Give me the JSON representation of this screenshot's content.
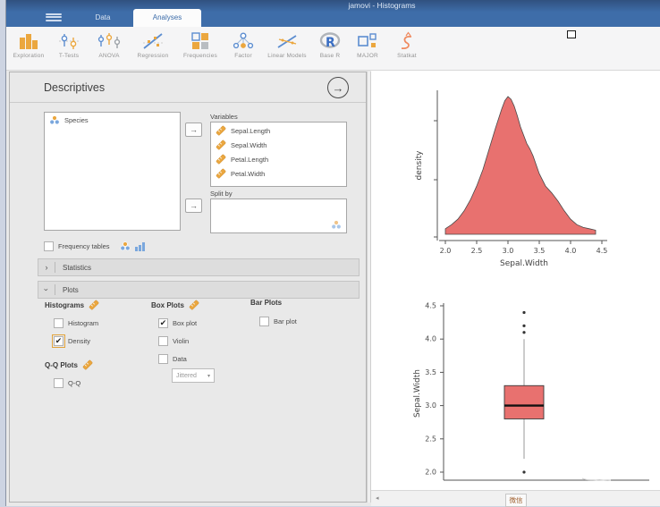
{
  "window": {
    "title": "jamovi - Histograms"
  },
  "menubar": {
    "tabs": [
      {
        "label": "Data"
      },
      {
        "label": "Analyses",
        "active": true
      }
    ]
  },
  "toolbar": {
    "items": [
      "Exploration",
      "T-Tests",
      "ANOVA",
      "Regression",
      "Frequencies",
      "Factor",
      "Linear Models",
      "Base R",
      "MAJOR",
      "Statkat"
    ]
  },
  "icons": {
    "move_right": "→",
    "run_arrow": "→",
    "chevron": "›",
    "dropdown_caret": "▾",
    "check": "✔"
  },
  "options_panel": {
    "title": "Descriptives",
    "available_variables": [
      "Species"
    ],
    "variables_label": "Variables",
    "variables": [
      "Sepal.Length",
      "Sepal.Width",
      "Petal.Length",
      "Petal.Width"
    ],
    "split_by_label": "Split by",
    "frequency_tables_label": "Frequency tables",
    "sections": [
      {
        "label": "Statistics",
        "collapsed": true
      },
      {
        "label": "Plots",
        "collapsed": false
      }
    ],
    "plots": {
      "histograms_title": "Histograms",
      "histogram_label": "Histogram",
      "density_label": "Density",
      "density_checked": true,
      "qq_title": "Q-Q Plots",
      "qq_label": "Q-Q",
      "box_title": "Box Plots",
      "box_label": "Box plot",
      "box_checked": true,
      "violin_label": "Violin",
      "data_label": "Data",
      "data_dropdown_value": "Jittered",
      "bar_title": "Bar Plots",
      "bar_label": "Bar plot"
    }
  },
  "results": {
    "bottom_arrow": "◂",
    "overlay_window_label": "微信"
  },
  "colors": {
    "titlebar": "#3e6da9",
    "plot_fill": "#e8716f",
    "icon_orange": "#eba73f",
    "icon_blue": "#5c8dd0"
  },
  "chart_data": [
    {
      "type": "area",
      "xlabel": "Sepal.Width",
      "ylabel": "density",
      "xlim": [
        2.0,
        4.5
      ],
      "xtick_labels": [
        "2.0",
        "2.5",
        "3.0",
        "3.5",
        "4.0",
        "4.5"
      ],
      "peak_x": 3.0,
      "curve": [
        [
          2.0,
          0.04
        ],
        [
          2.1,
          0.07
        ],
        [
          2.2,
          0.11
        ],
        [
          2.3,
          0.17
        ],
        [
          2.4,
          0.25
        ],
        [
          2.5,
          0.35
        ],
        [
          2.6,
          0.47
        ],
        [
          2.7,
          0.62
        ],
        [
          2.8,
          0.77
        ],
        [
          2.9,
          0.91
        ],
        [
          2.95,
          0.97
        ],
        [
          3.0,
          1.0
        ],
        [
          3.05,
          0.98
        ],
        [
          3.1,
          0.93
        ],
        [
          3.15,
          0.86
        ],
        [
          3.2,
          0.78
        ],
        [
          3.3,
          0.66
        ],
        [
          3.35,
          0.62
        ],
        [
          3.4,
          0.57
        ],
        [
          3.5,
          0.44
        ],
        [
          3.6,
          0.35
        ],
        [
          3.7,
          0.3
        ],
        [
          3.8,
          0.24
        ],
        [
          3.9,
          0.17
        ],
        [
          4.0,
          0.11
        ],
        [
          4.1,
          0.07
        ],
        [
          4.2,
          0.05
        ],
        [
          4.3,
          0.04
        ],
        [
          4.4,
          0.03
        ]
      ]
    },
    {
      "type": "boxplot",
      "ylabel": "Sepal.Width",
      "ytick_labels": [
        "2.0",
        "2.5",
        "3.0",
        "3.5",
        "4.0",
        "4.5"
      ],
      "q1": 2.8,
      "median": 3.0,
      "q3": 3.3,
      "whisker_low": 2.2,
      "whisker_high": 4.0,
      "outliers": [
        2.0,
        4.1,
        4.2,
        4.4
      ]
    }
  ]
}
